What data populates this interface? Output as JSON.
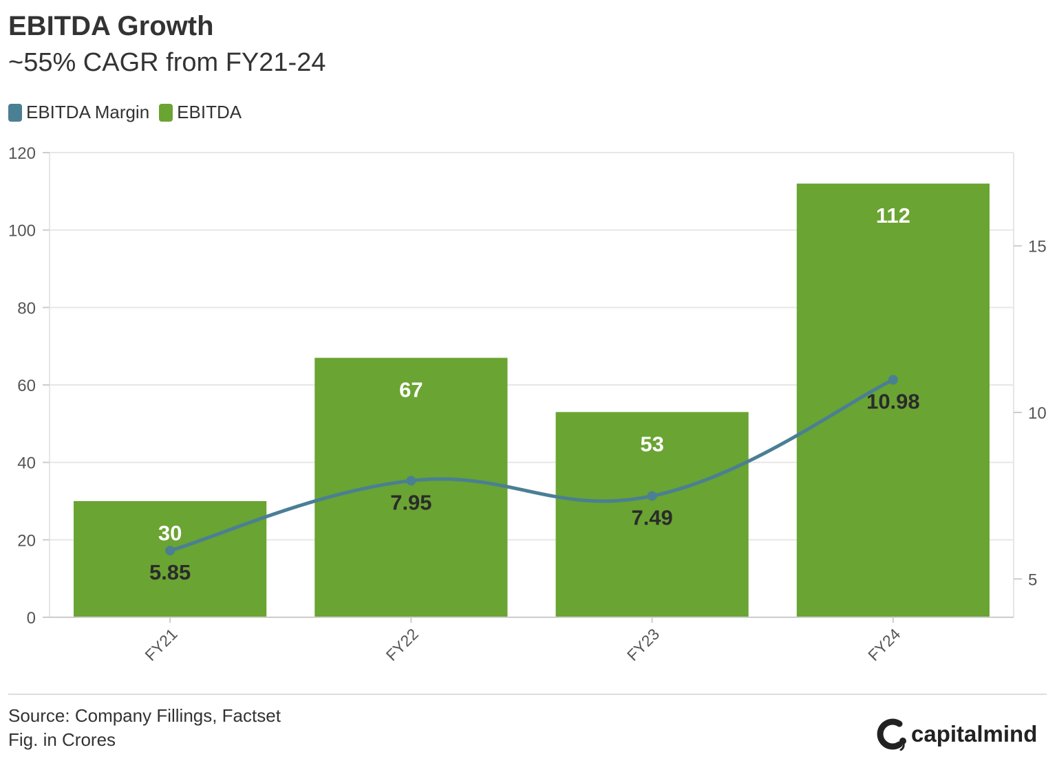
{
  "header": {
    "title": "EBITDA Growth",
    "subtitle": "~55% CAGR from FY21-24"
  },
  "legend": {
    "margin_label": "EBITDA Margin",
    "ebitda_label": "EBITDA"
  },
  "footer": {
    "source": "Source: Company Fillings, Factset",
    "note": "Fig. in Crores",
    "brand": "capitalmind"
  },
  "colors": {
    "bar": "#6aa432",
    "line": "#4a7f94",
    "grid": "#e6e6e6",
    "text": "#333333"
  },
  "chart_data": {
    "type": "bar",
    "title": "EBITDA Growth",
    "subtitle": "~55% CAGR from FY21-24",
    "categories": [
      "FY21",
      "FY22",
      "FY23",
      "FY24"
    ],
    "series": [
      {
        "name": "EBITDA",
        "type": "bar",
        "axis": "left",
        "values": [
          30,
          67,
          53,
          112
        ]
      },
      {
        "name": "EBITDA Margin",
        "type": "line",
        "axis": "right",
        "values": [
          5.85,
          7.95,
          7.49,
          10.98
        ]
      }
    ],
    "y_left": {
      "ticks": [
        0,
        20,
        40,
        60,
        80,
        100,
        120
      ],
      "range": [
        0,
        120
      ]
    },
    "y_right": {
      "ticks": [
        5,
        10,
        15
      ],
      "range": [
        3.85,
        17.8
      ]
    },
    "grid": true,
    "legend_position": "top-left"
  }
}
